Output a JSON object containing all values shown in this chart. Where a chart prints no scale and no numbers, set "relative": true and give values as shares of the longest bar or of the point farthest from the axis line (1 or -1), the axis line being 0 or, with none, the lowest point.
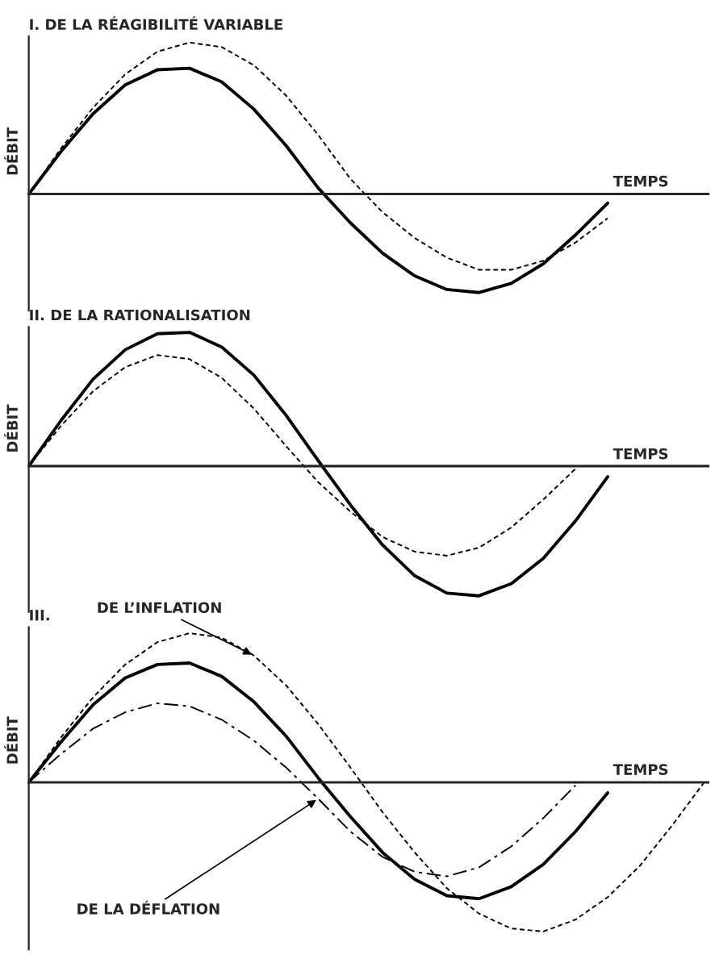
{
  "chart_data": [
    {
      "type": "line",
      "title": "I. DE LA RÉAGIBILITÉ VARIABLE",
      "xlabel": "TEMPS",
      "ylabel": "DÉBIT",
      "relative": true,
      "marker": "none",
      "categories": [
        null,
        null,
        null,
        null,
        null,
        null,
        null,
        null,
        null,
        null,
        null,
        null,
        null,
        null,
        null,
        null,
        null,
        null,
        null
      ],
      "series": [
        {
          "color": "#000000",
          "line_style": "solid",
          "values": [
            0,
            0.28,
            0.53,
            0.72,
            0.82,
            0.83,
            0.74,
            0.56,
            0.32,
            0.04,
            -0.19,
            -0.39,
            -0.54,
            -0.63,
            -0.65,
            -0.59,
            -0.46,
            -0.27,
            -0.06
          ]
        },
        {
          "color": "#000000",
          "line_style": "dashed",
          "values": [
            0,
            0.3,
            0.57,
            0.79,
            0.94,
            1.0,
            0.97,
            0.85,
            0.65,
            0.39,
            0.1,
            -0.12,
            -0.29,
            -0.42,
            -0.5,
            -0.5,
            -0.44,
            -0.32,
            -0.16
          ]
        }
      ]
    },
    {
      "type": "line",
      "title": "II. DE LA RATIONALISATION",
      "xlabel": "TEMPS",
      "ylabel": "DÉBIT",
      "relative": true,
      "marker": "none",
      "categories": [
        null,
        null,
        null,
        null,
        null,
        null,
        null,
        null,
        null,
        null,
        null,
        null,
        null,
        null,
        null,
        null,
        null,
        null,
        null
      ],
      "series": [
        {
          "color": "#000000",
          "line_style": "solid",
          "values": [
            0,
            0.34,
            0.65,
            0.87,
            0.99,
            1.0,
            0.89,
            0.68,
            0.38,
            0.04,
            -0.29,
            -0.59,
            -0.82,
            -0.95,
            -0.97,
            -0.88,
            -0.69,
            -0.41,
            -0.08
          ]
        },
        {
          "color": "#000000",
          "line_style": "dashed",
          "values": [
            0,
            0.3,
            0.56,
            0.74,
            0.83,
            0.8,
            0.66,
            0.43,
            0.15,
            -0.12,
            -0.34,
            -0.53,
            -0.64,
            -0.67,
            -0.61,
            -0.46,
            -0.25,
            -0.02,
            null
          ]
        }
      ]
    },
    {
      "type": "line",
      "title": "III.",
      "xlabel": "TEMPS",
      "ylabel": "DÉBIT",
      "relative": true,
      "marker": "none",
      "categories": [
        null,
        null,
        null,
        null,
        null,
        null,
        null,
        null,
        null,
        null,
        null,
        null,
        null,
        null,
        null,
        null,
        null,
        null,
        null,
        null,
        null,
        null
      ],
      "series": [
        {
          "color": "#000000",
          "line_style": "solid",
          "values": [
            0,
            0.27,
            0.52,
            0.7,
            0.79,
            0.8,
            0.71,
            0.54,
            0.31,
            0.03,
            -0.23,
            -0.47,
            -0.65,
            -0.76,
            -0.78,
            -0.7,
            -0.55,
            -0.33,
            -0.07,
            null,
            null,
            null
          ]
        },
        {
          "name": "DE L’INFLATION",
          "color": "#000000",
          "line_style": "dashed",
          "values": [
            0,
            0.3,
            0.57,
            0.79,
            0.94,
            1.0,
            0.97,
            0.85,
            0.65,
            0.39,
            0.1,
            -0.2,
            -0.47,
            -0.71,
            -0.88,
            -0.98,
            -1.0,
            -0.92,
            -0.77,
            -0.56,
            -0.29,
            0
          ]
        },
        {
          "name": "DE LA DÉFLATION",
          "color": "#000000",
          "line_style": "dashdot",
          "values": [
            0,
            0.19,
            0.36,
            0.47,
            0.53,
            0.51,
            0.42,
            0.28,
            0.1,
            -0.11,
            -0.33,
            -0.5,
            -0.6,
            -0.63,
            -0.57,
            -0.43,
            -0.24,
            -0.02,
            null,
            null,
            null,
            null
          ]
        }
      ]
    }
  ]
}
